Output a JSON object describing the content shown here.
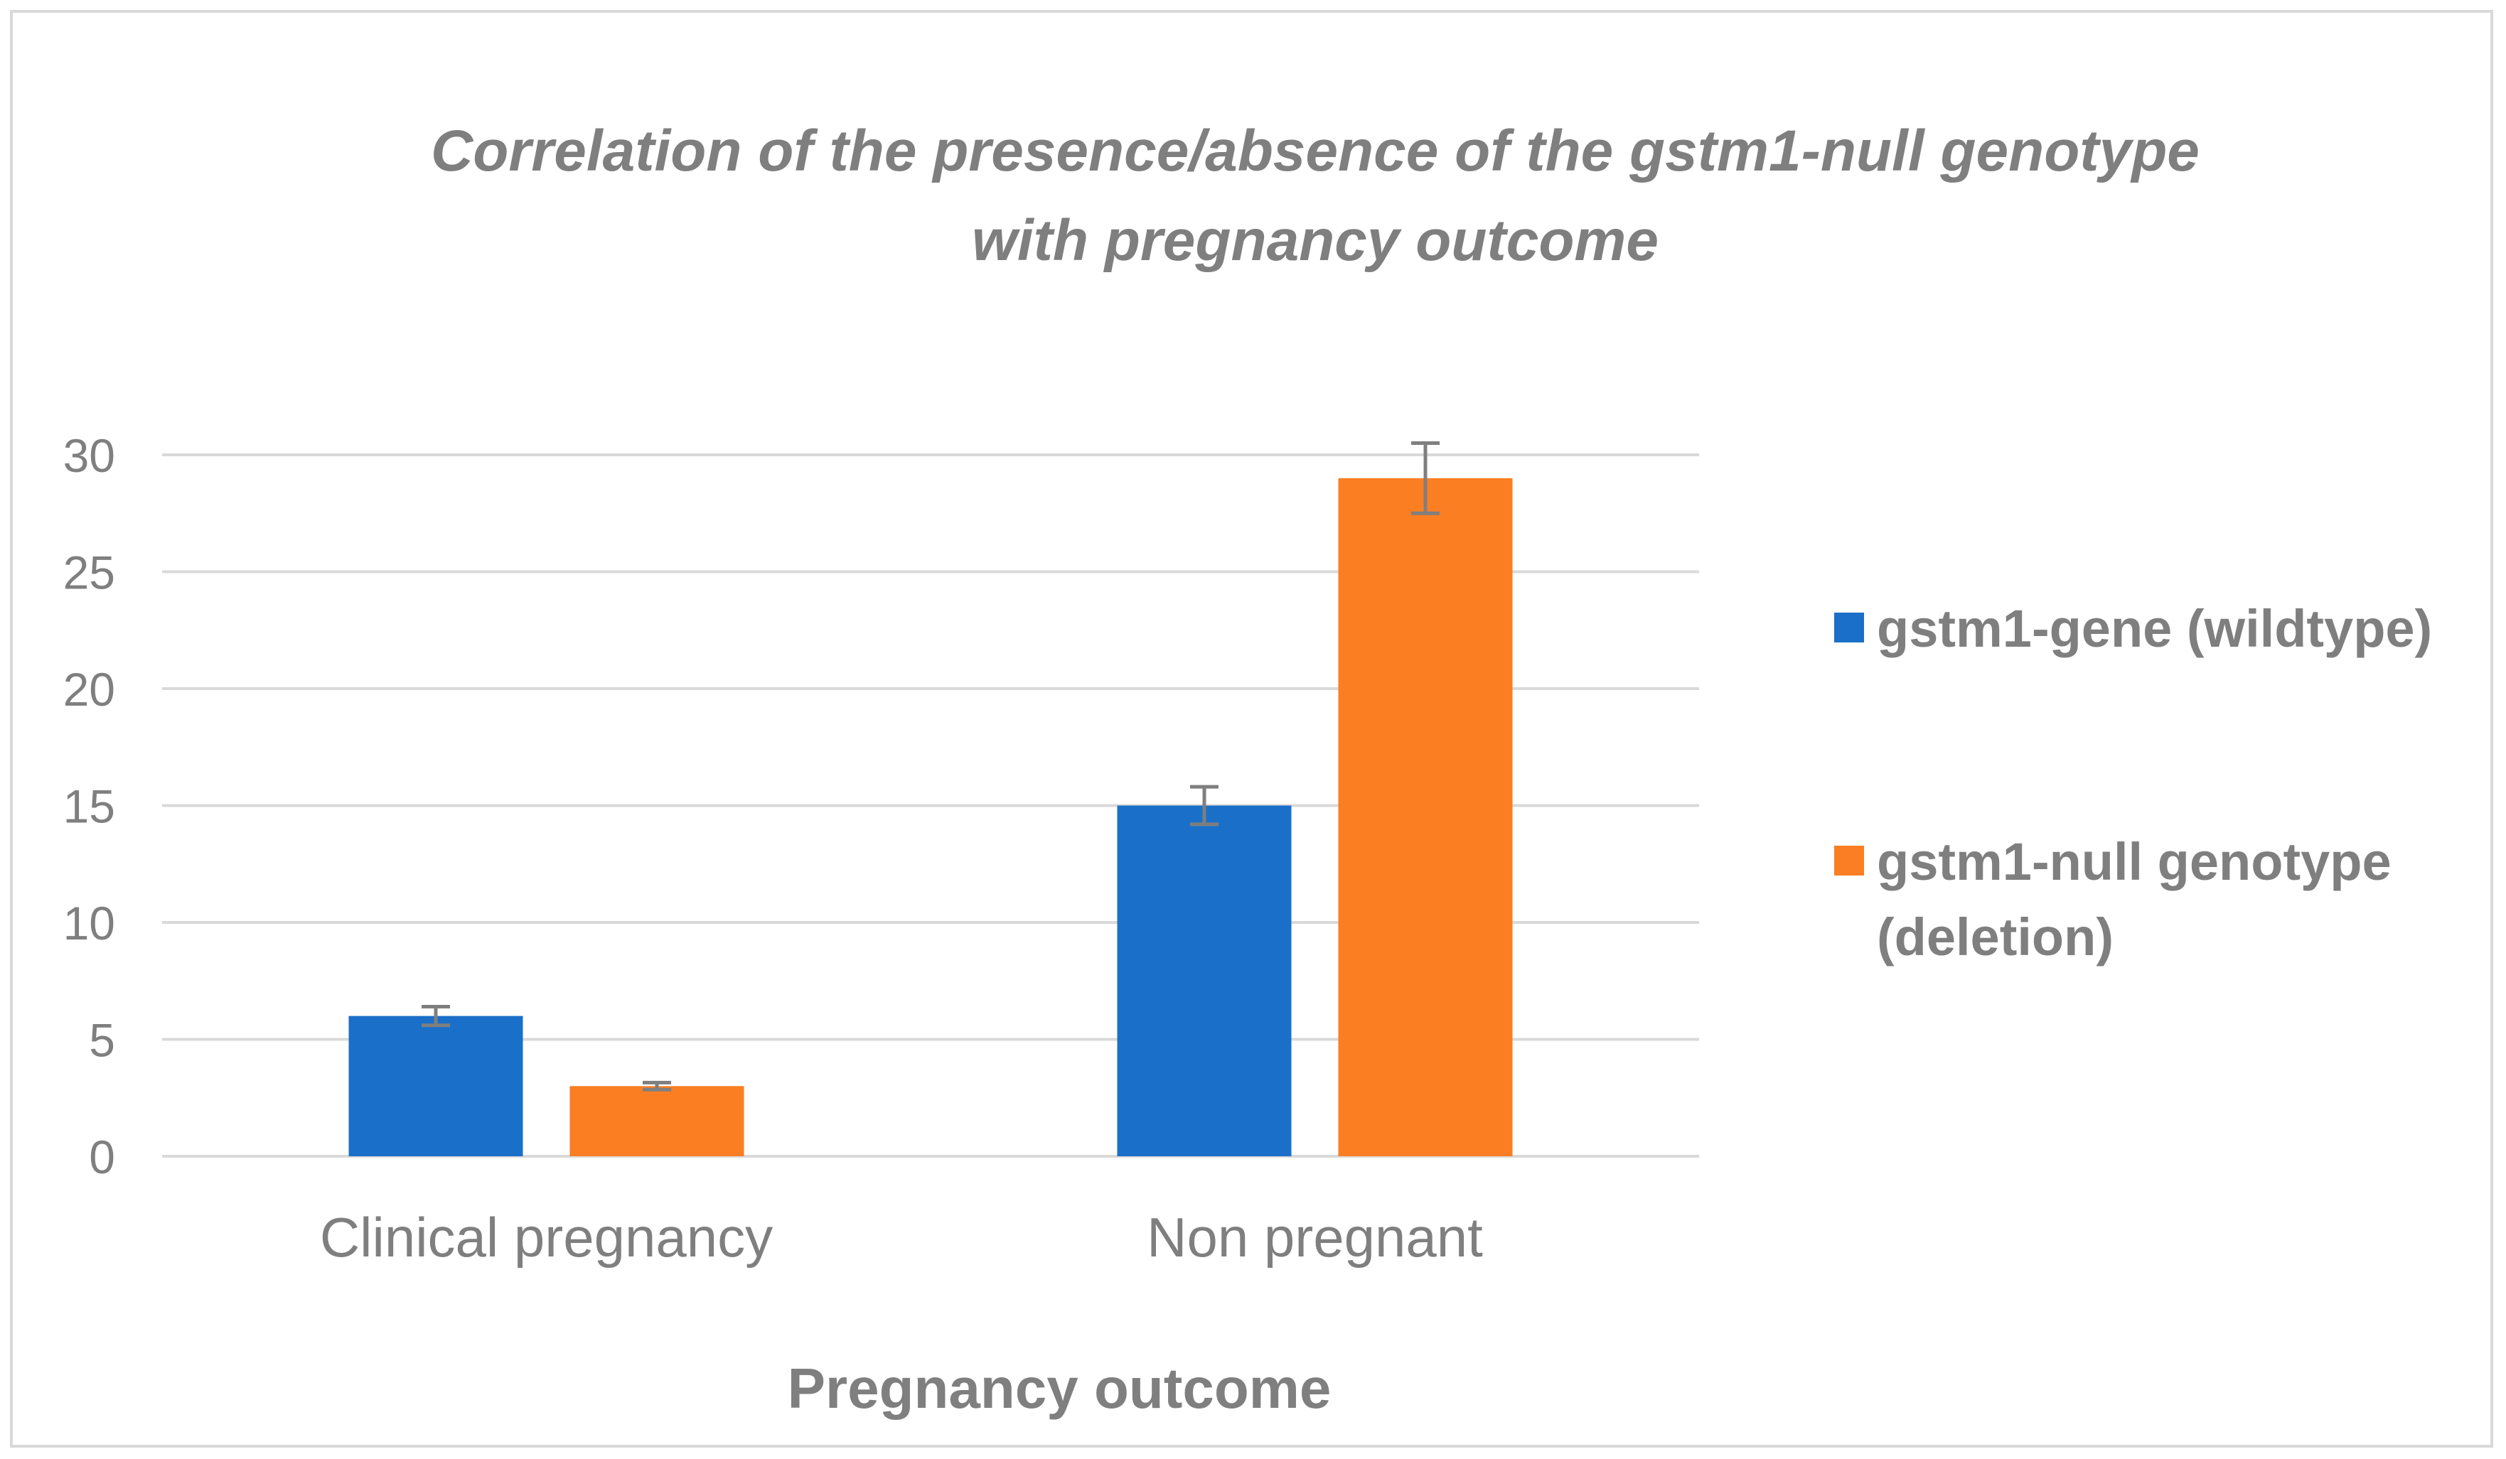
{
  "chart_data": {
    "type": "bar",
    "title": "Correlation of the presence/absence of the gstm1-null genotype\nwith pregnancy outcome",
    "xlabel": "Pregnancy outcome",
    "ylabel": "",
    "categories": [
      "Clinical pregnancy",
      "Non pregnant"
    ],
    "series": [
      {
        "name": "gstm1-gene (wildtype)",
        "color": "#1a70c8",
        "values": [
          6,
          15
        ],
        "error": [
          0.4,
          0.8
        ]
      },
      {
        "name": "gstm1-null genotype (deletion)",
        "color": "#fb7e22",
        "values": [
          3,
          29
        ],
        "error": [
          0.15,
          1.5
        ]
      }
    ],
    "ylim": [
      0,
      30
    ],
    "yticks": [
      0,
      5,
      10,
      15,
      20,
      25,
      30
    ],
    "grid": true,
    "legend_position": "right",
    "colors": {
      "gridline": "#d9d9d9",
      "text": "#7f7f7f",
      "error_bar": "#7f7f7f"
    }
  }
}
